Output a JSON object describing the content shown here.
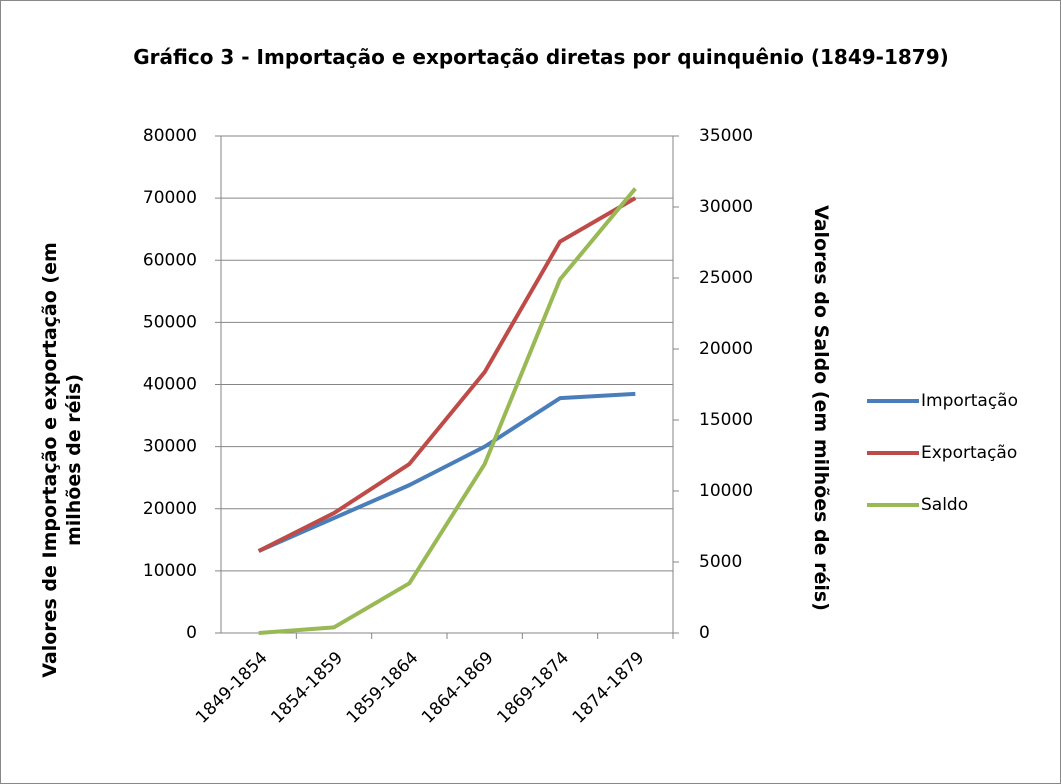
{
  "chart_data": {
    "type": "line",
    "title": "Gráfico 3 - Importação e exportação diretas por quinquênio (1849-1879)",
    "y_label": "Valores de Importação e exportação (em milhões de réis)",
    "y2_label": "Valores do Saldo (em milhões de réis)",
    "categories": [
      "1849-1854",
      "1854-1859",
      "1859-1864",
      "1864-1869",
      "1869-1874",
      "1874-1879"
    ],
    "series": [
      {
        "name": "Importação",
        "color": "#4a7ebb",
        "values": [
          13200,
          18500,
          23800,
          30000,
          37800,
          38500
        ]
      },
      {
        "name": "Exportação",
        "color": "#be4b48",
        "values": [
          13200,
          19300,
          27200,
          42000,
          63000,
          70000
        ]
      },
      {
        "name": "Saldo",
        "color": "#98b954",
        "axis": "y2",
        "values": [
          0,
          400,
          3500,
          11900,
          24900,
          31300
        ]
      }
    ],
    "ylim": [
      0,
      80000
    ],
    "yticks": [
      0,
      10000,
      20000,
      30000,
      40000,
      50000,
      60000,
      70000,
      80000
    ],
    "y2lim": [
      0,
      35000
    ],
    "y2ticks": [
      0,
      5000,
      10000,
      15000,
      20000,
      25000,
      30000,
      35000
    ],
    "grid": true,
    "legend": "right"
  }
}
